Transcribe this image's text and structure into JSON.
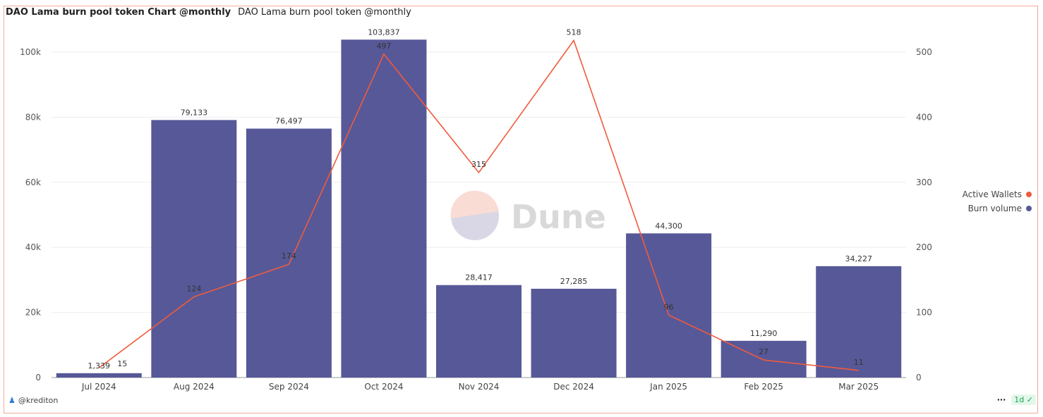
{
  "header": {
    "title": "DAO Lama burn pool token Chart @monthly",
    "subtitle": "DAO Lama burn pool token @monthly"
  },
  "footer": {
    "author": "@krediton",
    "menu": "···",
    "freshness": "1d"
  },
  "watermark": "Dune",
  "colors": {
    "bar": "#575898",
    "line": "#ef5b3d"
  },
  "chart_data": {
    "type": "bar",
    "categories": [
      "Jul 2024",
      "Aug 2024",
      "Sep 2024",
      "Oct 2024",
      "Nov 2024",
      "Dec 2024",
      "Jan 2025",
      "Feb 2025",
      "Mar 2025"
    ],
    "series": [
      {
        "name": "Burn volume",
        "type": "bar",
        "axis": "left",
        "values": [
          1339,
          79133,
          76497,
          103837,
          28417,
          27285,
          44300,
          11290,
          34227
        ],
        "labels": [
          "1,339",
          "79,133",
          "76,497",
          "103,837",
          "28,417",
          "27,285",
          "44,300",
          "11,290",
          "34,227"
        ]
      },
      {
        "name": "Active Wallets",
        "type": "line",
        "axis": "right",
        "values": [
          15,
          124,
          174,
          497,
          315,
          518,
          96,
          27,
          11
        ],
        "labels": [
          "15",
          "124",
          "174",
          "497",
          "315",
          "518",
          "96",
          "27",
          "11"
        ]
      }
    ],
    "y_left": {
      "ticks": [
        "0",
        "20k",
        "40k",
        "60k",
        "80k",
        "100k"
      ],
      "tick_values": [
        0,
        20000,
        40000,
        60000,
        80000,
        100000
      ],
      "range": [
        0,
        100000
      ]
    },
    "y_right": {
      "ticks": [
        "0",
        "100",
        "200",
        "300",
        "400",
        "500"
      ],
      "tick_values": [
        0,
        100,
        200,
        300,
        400,
        500
      ],
      "range": [
        0,
        500
      ]
    },
    "legend": [
      {
        "label": "Active Wallets",
        "color": "#ef5b3d"
      },
      {
        "label": "Burn volume",
        "color": "#575898"
      }
    ],
    "legend_position": "right",
    "grid": true
  }
}
